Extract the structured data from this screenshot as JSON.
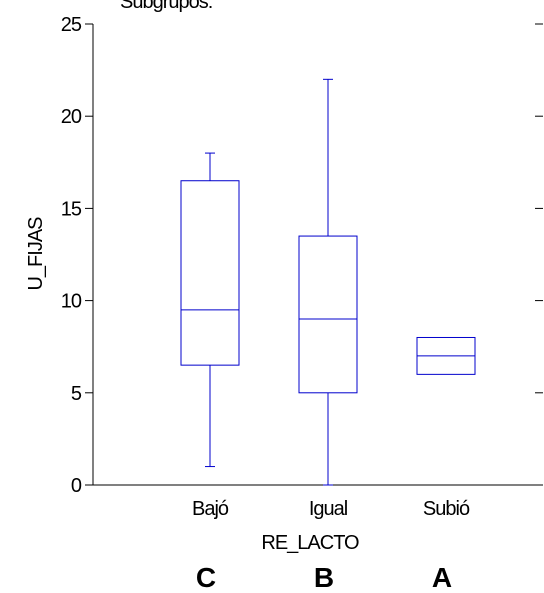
{
  "chart_data": {
    "type": "box",
    "title": "Subgrupos:",
    "xlabel": "RE_LACTO",
    "ylabel": "U_FIJAS",
    "ylim": [
      0,
      25
    ],
    "yticks": [
      0,
      5,
      10,
      15,
      20,
      25
    ],
    "grid": false,
    "categories": [
      "Bajó",
      "Igual",
      "Subió"
    ],
    "boxes": [
      {
        "category": "Bajó",
        "whisker_low": 1,
        "q1": 6.5,
        "median": 9.5,
        "q3": 16.5,
        "whisker_high": 18
      },
      {
        "category": "Igual",
        "whisker_low": 0,
        "q1": 5,
        "median": 9,
        "q3": 13.5,
        "whisker_high": 22
      },
      {
        "category": "Subió",
        "whisker_low": 6,
        "q1": 6,
        "median": 7,
        "q3": 8,
        "whisker_high": 8
      }
    ],
    "group_letters": [
      "C",
      "B",
      "A"
    ],
    "box_color": "#0000cc",
    "axis_color": "#000000"
  }
}
